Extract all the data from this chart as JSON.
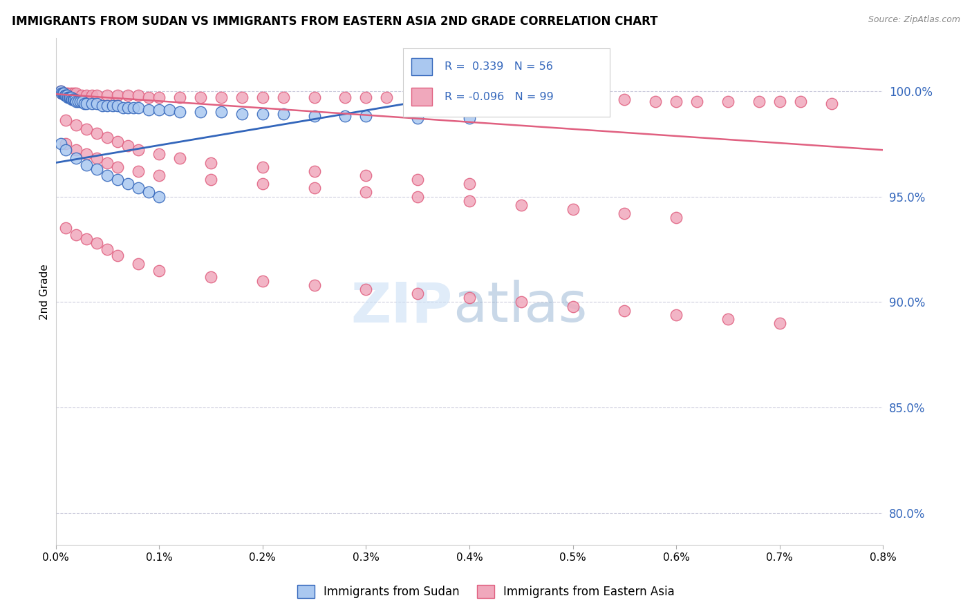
{
  "title": "IMMIGRANTS FROM SUDAN VS IMMIGRANTS FROM EASTERN ASIA 2ND GRADE CORRELATION CHART",
  "source_text": "Source: ZipAtlas.com",
  "ylabel": "2nd Grade",
  "ytick_labels": [
    "100.0%",
    "95.0%",
    "90.0%",
    "85.0%",
    "80.0%"
  ],
  "ytick_positions": [
    1.0,
    0.95,
    0.9,
    0.85,
    0.8
  ],
  "xmin": 0.0,
  "xmax": 0.008,
  "ymin": 0.785,
  "ymax": 1.025,
  "color_blue": "#aac8f0",
  "color_pink": "#f0a8bc",
  "color_blue_line": "#3366bb",
  "color_pink_line": "#e06080",
  "color_label_blue": "#3366bb",
  "color_grid": "#ccccdd",
  "blue_x": [
    5e-05,
    6e-05,
    7e-05,
    8e-05,
    9e-05,
    0.0001,
    0.00011,
    0.00012,
    0.00013,
    0.00014,
    0.00015,
    0.00016,
    0.00017,
    0.00018,
    0.00019,
    0.0002,
    0.00022,
    0.00024,
    0.00026,
    0.00028,
    0.0003,
    0.00035,
    0.0004,
    0.00045,
    0.0005,
    0.00055,
    0.0006,
    0.00065,
    0.0007,
    0.00075,
    0.0008,
    0.0009,
    0.001,
    0.0011,
    0.0012,
    0.0014,
    0.0016,
    0.0018,
    0.002,
    0.0022,
    0.0025,
    0.0028,
    0.003,
    0.0035,
    0.004,
    5e-05,
    0.0001,
    0.0002,
    0.0003,
    0.0004,
    0.0005,
    0.0006,
    0.0007,
    0.0008,
    0.0009,
    0.001
  ],
  "blue_y": [
    1.0,
    0.999,
    0.999,
    0.999,
    0.998,
    0.998,
    0.998,
    0.997,
    0.997,
    0.997,
    0.997,
    0.996,
    0.996,
    0.996,
    0.996,
    0.995,
    0.995,
    0.995,
    0.995,
    0.994,
    0.994,
    0.994,
    0.994,
    0.993,
    0.993,
    0.993,
    0.993,
    0.992,
    0.992,
    0.992,
    0.992,
    0.991,
    0.991,
    0.991,
    0.99,
    0.99,
    0.99,
    0.989,
    0.989,
    0.989,
    0.988,
    0.988,
    0.988,
    0.987,
    0.987,
    0.975,
    0.972,
    0.968,
    0.965,
    0.963,
    0.96,
    0.958,
    0.956,
    0.954,
    0.952,
    0.95
  ],
  "pink_x": [
    5e-05,
    6e-05,
    7e-05,
    8e-05,
    0.0001,
    0.00012,
    0.00015,
    0.00018,
    0.0002,
    0.00025,
    0.0003,
    0.00035,
    0.0004,
    0.0005,
    0.0006,
    0.0007,
    0.0008,
    0.0009,
    0.001,
    0.0012,
    0.0014,
    0.0016,
    0.0018,
    0.002,
    0.0022,
    0.0025,
    0.0028,
    0.003,
    0.0032,
    0.0035,
    0.0038,
    0.004,
    0.0042,
    0.0045,
    0.0048,
    0.005,
    0.0052,
    0.0055,
    0.0058,
    0.006,
    0.0062,
    0.0065,
    0.0068,
    0.007,
    0.0072,
    0.0075,
    0.0001,
    0.0002,
    0.0003,
    0.0004,
    0.0005,
    0.0006,
    0.0007,
    0.0008,
    0.001,
    0.0012,
    0.0015,
    0.002,
    0.0025,
    0.003,
    0.0035,
    0.004,
    0.0001,
    0.0002,
    0.0003,
    0.0004,
    0.0005,
    0.0006,
    0.0008,
    0.001,
    0.0015,
    0.002,
    0.0025,
    0.003,
    0.0035,
    0.004,
    0.0045,
    0.005,
    0.0055,
    0.006,
    0.0001,
    0.0002,
    0.0003,
    0.0004,
    0.0005,
    0.0006,
    0.0008,
    0.001,
    0.0015,
    0.002,
    0.0025,
    0.003,
    0.0035,
    0.004,
    0.0045,
    0.005,
    0.0055,
    0.006,
    0.0065,
    0.007
  ],
  "pink_y": [
    1.0,
    0.999,
    0.999,
    0.999,
    0.999,
    0.999,
    0.999,
    0.999,
    0.999,
    0.998,
    0.998,
    0.998,
    0.998,
    0.998,
    0.998,
    0.998,
    0.998,
    0.997,
    0.997,
    0.997,
    0.997,
    0.997,
    0.997,
    0.997,
    0.997,
    0.997,
    0.997,
    0.997,
    0.997,
    0.996,
    0.996,
    0.996,
    0.996,
    0.996,
    0.996,
    0.996,
    0.996,
    0.996,
    0.995,
    0.995,
    0.995,
    0.995,
    0.995,
    0.995,
    0.995,
    0.994,
    0.986,
    0.984,
    0.982,
    0.98,
    0.978,
    0.976,
    0.974,
    0.972,
    0.97,
    0.968,
    0.966,
    0.964,
    0.962,
    0.96,
    0.958,
    0.956,
    0.975,
    0.972,
    0.97,
    0.968,
    0.966,
    0.964,
    0.962,
    0.96,
    0.958,
    0.956,
    0.954,
    0.952,
    0.95,
    0.948,
    0.946,
    0.944,
    0.942,
    0.94,
    0.935,
    0.932,
    0.93,
    0.928,
    0.925,
    0.922,
    0.918,
    0.915,
    0.912,
    0.91,
    0.908,
    0.906,
    0.904,
    0.902,
    0.9,
    0.898,
    0.896,
    0.894,
    0.892,
    0.89
  ]
}
